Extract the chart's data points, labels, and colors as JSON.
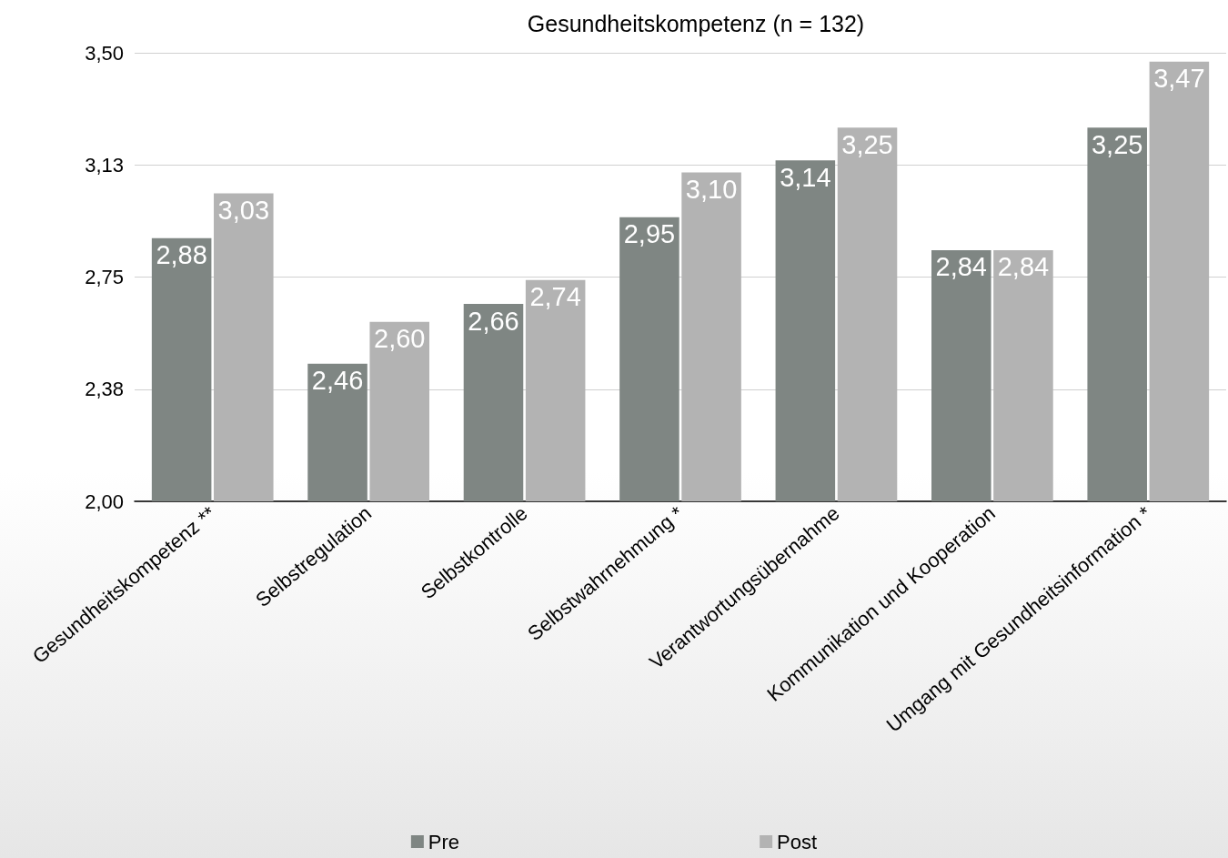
{
  "chart_data": {
    "type": "bar",
    "title": "Gesundheitskompetenz (n = 132)",
    "categories": [
      "Gesundheitskompetenz **",
      "Selbstregulation",
      "Selbstkontrolle",
      "Selbstwahrnehmung *",
      "Verantwortungsübernahme",
      "Kommunikation und Kooperation",
      "Umgang mit Gesundheitsinformation *"
    ],
    "series": [
      {
        "name": "Pre",
        "color": "#7f8683",
        "values": [
          2.88,
          2.46,
          2.66,
          2.95,
          3.14,
          2.84,
          3.25
        ],
        "value_labels": [
          "2,88",
          "2,46",
          "2,66",
          "2,95",
          "3,14",
          "2,84",
          "3,25"
        ]
      },
      {
        "name": "Post",
        "color": "#b3b3b3",
        "values": [
          3.03,
          2.6,
          2.74,
          3.1,
          3.25,
          2.84,
          3.47
        ],
        "value_labels": [
          "3,03",
          "2,60",
          "2,74",
          "3,10",
          "3,25",
          "2,84",
          "3,47"
        ]
      }
    ],
    "ylim": [
      2,
      3.5
    ],
    "yticks": [
      {
        "value": 2,
        "label": "2,00"
      },
      {
        "value": 2.375,
        "label": "2,38"
      },
      {
        "value": 2.75,
        "label": "2,75"
      },
      {
        "value": 3.125,
        "label": "3,13"
      },
      {
        "value": 3.5,
        "label": "3,50"
      }
    ],
    "grid": "y",
    "legend": "bottom"
  }
}
